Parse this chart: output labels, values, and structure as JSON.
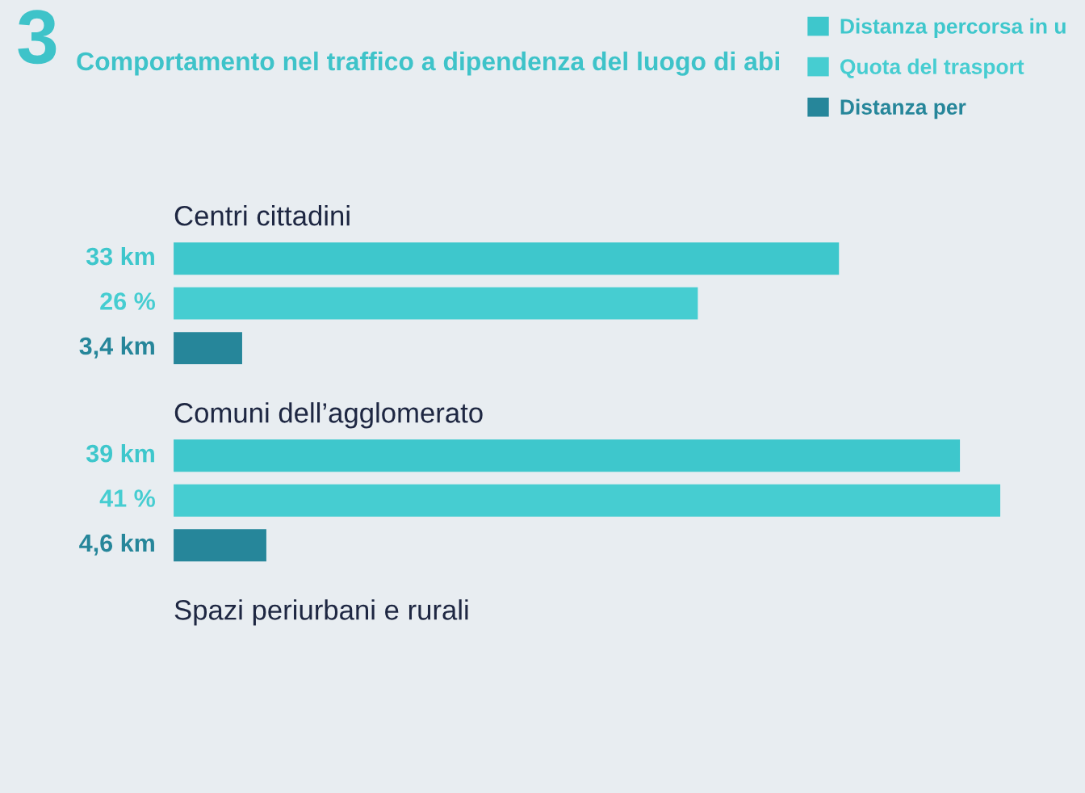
{
  "chart_data": {
    "type": "bar",
    "orientation": "horizontal",
    "title": "Comportamento nel traffico a dipendenza del luogo di abi",
    "annotations": [
      "3"
    ],
    "categories": [
      "Centri cittadini",
      "Comuni dell’agglomerato",
      "Spazi periurbani e rurali"
    ],
    "series": [
      {
        "name": "Distanza percorsa in u",
        "color": "#3ec7cc",
        "values": [
          33,
          39,
          null
        ],
        "value_labels": [
          "33 km",
          "39 km",
          null
        ]
      },
      {
        "name": "Quota del trasport",
        "color": "#46cdd1",
        "values": [
          26,
          41,
          null
        ],
        "value_labels": [
          "26 %",
          "41 %",
          null
        ]
      },
      {
        "name": "Distanza per",
        "color": "#26869a",
        "values": [
          3.4,
          4.6,
          null
        ],
        "value_labels": [
          "3,4 km",
          "4,6 km",
          null
        ]
      }
    ],
    "tick_labels": "y",
    "legend": "top right"
  }
}
